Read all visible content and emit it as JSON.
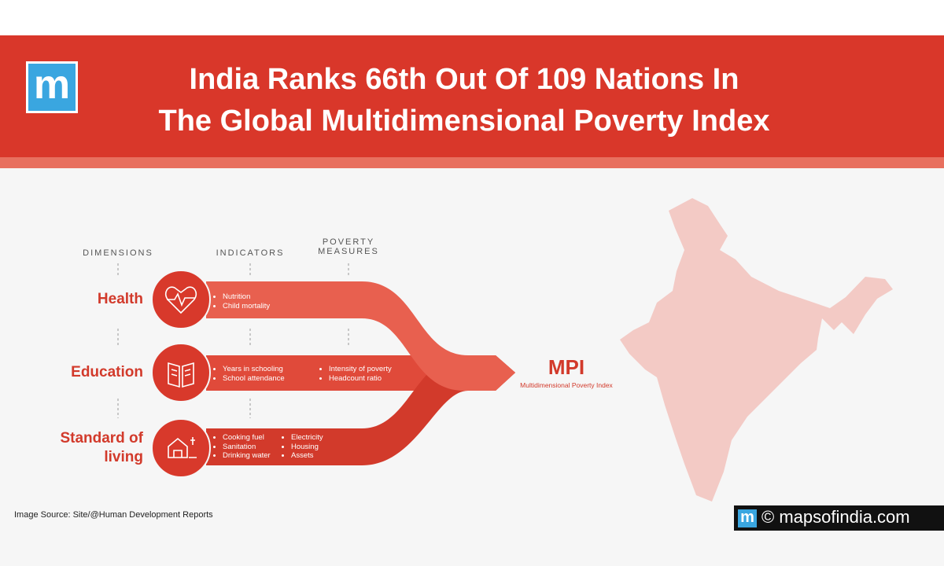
{
  "header": {
    "logo": "m",
    "title_lines": [
      "India Ranks 66th Out Of 109 Nations In",
      "The Global Multidimensional Poverty Index"
    ]
  },
  "columns": [
    "DIMENSIONS",
    "INDICATORS",
    "POVERTY MEASURES"
  ],
  "rows": [
    {
      "dimension": "Health",
      "indicators": [
        "Nutrition",
        "Child mortality"
      ]
    },
    {
      "dimension": "Education",
      "indicators": [
        "Years in schooling",
        "School attendance"
      ],
      "measures": [
        "Intensity of poverty",
        "Headcount ratio"
      ]
    },
    {
      "dimension": "Standard of living",
      "indicators": [
        "Cooking fuel",
        "Sanitation",
        "Drinking water",
        "Electricity",
        "Housing",
        "Assets"
      ]
    }
  ],
  "result": {
    "label": "MPI",
    "sublabel": "Multidimensional Poverty Index"
  },
  "source": "Image Source: Site/@Human Development Reports",
  "watermark": {
    "logo": "m",
    "text": "© mapsofindia.com"
  }
}
